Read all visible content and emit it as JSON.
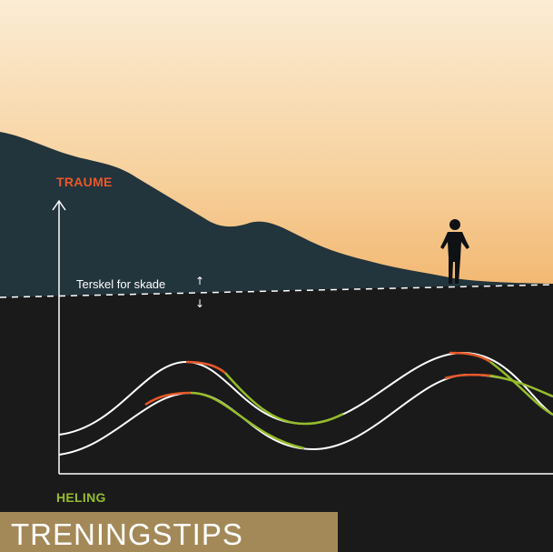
{
  "axis_top_label": "TRAUME",
  "axis_bottom_label": "HELING",
  "threshold_label": "Terskel for skade",
  "threshold_arrows": [
    "↑",
    "↓"
  ],
  "banner_text": "TRENINGSTIPS",
  "colors": {
    "trauma": "#e8582a",
    "healing": "#95bd2a",
    "banner": "#a48958",
    "sky_top": "#fbecd4",
    "sky_bottom": "#f4bf79",
    "mountain": "#22343c",
    "ground": "#1a1a1a",
    "curve": "#ffffff"
  },
  "icons": {
    "figure": "standing-person-silhouette",
    "axis_arrow": "arrow-up-icon"
  }
}
